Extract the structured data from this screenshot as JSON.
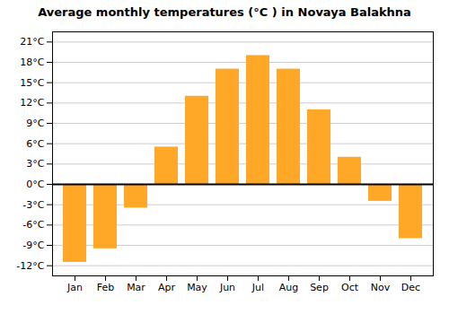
{
  "chart_data": {
    "type": "bar",
    "title": "Average monthly temperatures (°C ) in Novaya Balakhna",
    "categories": [
      "Jan",
      "Feb",
      "Mar",
      "Apr",
      "May",
      "Jun",
      "Jul",
      "Aug",
      "Sep",
      "Oct",
      "Nov",
      "Dec"
    ],
    "values": [
      -11.5,
      -9.5,
      -3.5,
      5.5,
      13.0,
      17.0,
      19.0,
      17.0,
      11.0,
      4.0,
      -2.5,
      -8.0
    ],
    "color": "#FFA726",
    "ylim": [
      -13.5,
      22.5
    ],
    "yticks": [
      {
        "value": -12,
        "label": "-12°C"
      },
      {
        "value": -9,
        "label": "-9°C"
      },
      {
        "value": -6,
        "label": "-6°C"
      },
      {
        "value": -3,
        "label": "-3°C"
      },
      {
        "value": 0,
        "label": "0°C"
      },
      {
        "value": 3,
        "label": "3°C"
      },
      {
        "value": 6,
        "label": "6°C"
      },
      {
        "value": 9,
        "label": "9°C"
      },
      {
        "value": 12,
        "label": "12°C"
      },
      {
        "value": 15,
        "label": "15°C"
      },
      {
        "value": 18,
        "label": "18°C"
      },
      {
        "value": 21,
        "label": "21°C"
      }
    ],
    "grid": true
  }
}
